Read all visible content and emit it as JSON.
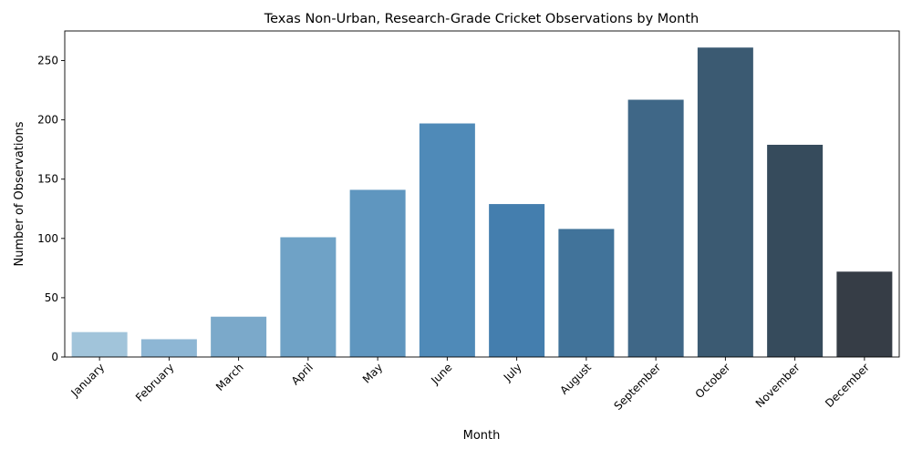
{
  "chart_data": {
    "type": "bar",
    "title": "Texas Non-Urban, Research-Grade Cricket Observations by Month",
    "xlabel": "Month",
    "ylabel": "Number of Observations",
    "categories": [
      "January",
      "February",
      "March",
      "April",
      "May",
      "June",
      "July",
      "August",
      "September",
      "October",
      "November",
      "December"
    ],
    "values": [
      21,
      15,
      34,
      101,
      141,
      197,
      129,
      108,
      217,
      261,
      179,
      72
    ],
    "colors": [
      "#a1c4da",
      "#8db6d4",
      "#7ba9ca",
      "#6fa2c6",
      "#5f96bf",
      "#4f8ab8",
      "#447eae",
      "#41739a",
      "#3f6787",
      "#3b5a72",
      "#364b5c",
      "#363d46"
    ],
    "ylim": [
      0,
      275
    ],
    "yticks": [
      0,
      50,
      100,
      150,
      200,
      250
    ],
    "grid": false,
    "legend": "none"
  }
}
